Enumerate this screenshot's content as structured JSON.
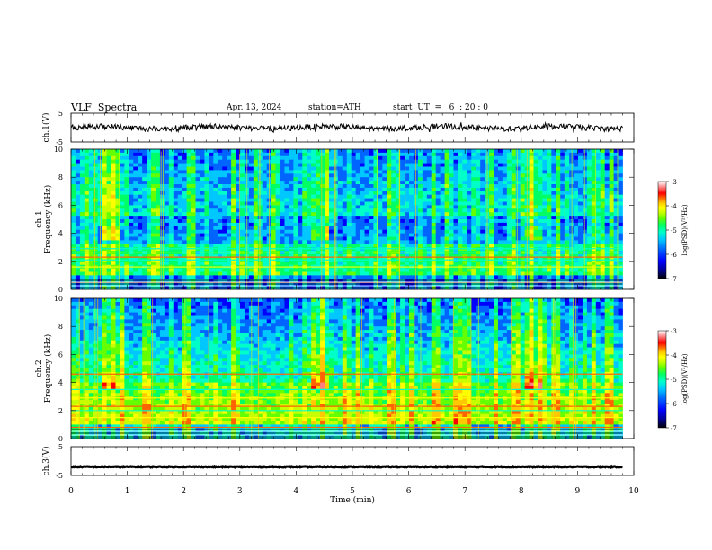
{
  "header": {
    "title": "VLF  Spectra",
    "date": "Apr. 13, 2024",
    "station": "station=ATH",
    "start_time": "start  UT  =   6  : 20 : 0"
  },
  "colors": {
    "colormap": [
      "#000000",
      "#00008b",
      "#0000ff",
      "#0064ff",
      "#00c8ff",
      "#00ffc8",
      "#00ff64",
      "#64ff00",
      "#c8ff00",
      "#ffff00",
      "#ffc800",
      "#ff6400",
      "#ff0000",
      "#ff7f7f",
      "#ffffff"
    ]
  },
  "chart_data": [
    {
      "type": "line",
      "name": "ch1-waveform",
      "ylabel": "ch.1(V)",
      "ylim": [
        -5,
        5
      ],
      "yticks": [
        "5",
        "-5"
      ],
      "xlim": [
        0,
        10
      ],
      "mean_level": 0.0,
      "noise_amplitude": 1.0
    },
    {
      "type": "heatmap",
      "name": "ch1-spectrogram",
      "ylabel_top": "ch.1",
      "ylabel": "Frequency  (kHz)",
      "ylim": [
        0,
        10
      ],
      "yticks": [
        "0",
        "2",
        "4",
        "6",
        "8",
        "10"
      ],
      "xlim": [
        0,
        9.8
      ],
      "colorbar": {
        "label": "log(PSD)(V²/Hz)",
        "range": [
          -7,
          -3
        ],
        "ticks": [
          "-3",
          "-4",
          "-5",
          "-6",
          "-7"
        ]
      },
      "bright_bursts_min": [
        0.7,
        4.4,
        8.2
      ],
      "emission_band_khz": 4.0,
      "steady_lines_khz": [
        0.5,
        1.6,
        2.1,
        2.3,
        2.6,
        2.9
      ]
    },
    {
      "type": "heatmap",
      "name": "ch2-spectrogram",
      "ylabel_top": "ch.2",
      "ylabel": "Frequency  (kHz)",
      "ylim": [
        0,
        10
      ],
      "yticks": [
        "0",
        "2",
        "4",
        "6",
        "8",
        "10"
      ],
      "xlim": [
        0,
        9.8
      ],
      "colorbar": {
        "label": "log(PSD)(V²/Hz)",
        "range": [
          -7,
          -3
        ],
        "ticks": [
          "-3",
          "-4",
          "-5",
          "-6",
          "-7"
        ]
      },
      "bright_bursts_min": [
        0.7,
        4.4,
        8.2
      ],
      "emission_band_khz": 4.0,
      "steady_lines_khz": [
        0.8,
        1.5,
        2.0,
        2.3,
        2.9,
        3.5,
        4.6
      ]
    },
    {
      "type": "line",
      "name": "ch3-waveform",
      "ylabel": "ch.3(V)",
      "ylim": [
        -5,
        5
      ],
      "yticks": [
        "5",
        "-5"
      ],
      "xlim": [
        0,
        10
      ],
      "mean_level": -2.0,
      "noise_amplitude": 0.15
    }
  ],
  "x_axis": {
    "label": "Time  (min)",
    "ticks": [
      "0",
      "1",
      "2",
      "3",
      "4",
      "5",
      "6",
      "7",
      "8",
      "9",
      "10"
    ]
  }
}
